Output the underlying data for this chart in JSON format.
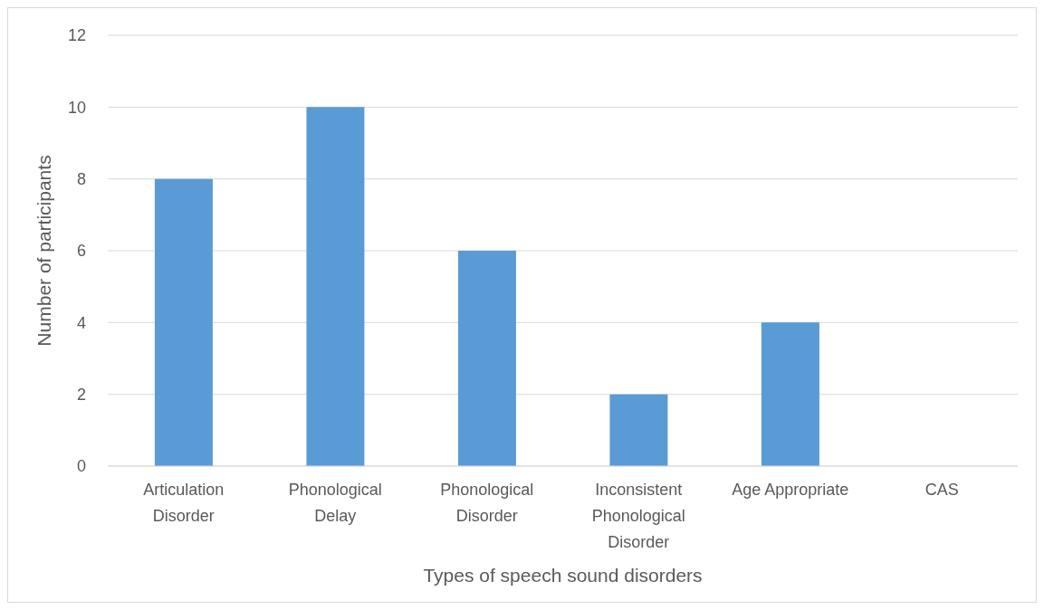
{
  "chart_data": {
    "type": "bar",
    "xlabel": "Types of speech sound disorders",
    "ylabel": "Number of participants",
    "categories": [
      "Articulation Disorder",
      "Phonological Delay",
      "Phonological Disorder",
      "Inconsistent Phonological Disorder",
      "Age Appropriate",
      "CAS"
    ],
    "values": [
      8,
      10,
      6,
      2,
      4,
      0
    ],
    "color": "#5b9bd5",
    "ylim": [
      0,
      12
    ],
    "yticks": [
      0,
      2,
      4,
      6,
      8,
      10,
      12
    ],
    "grid": "y"
  }
}
